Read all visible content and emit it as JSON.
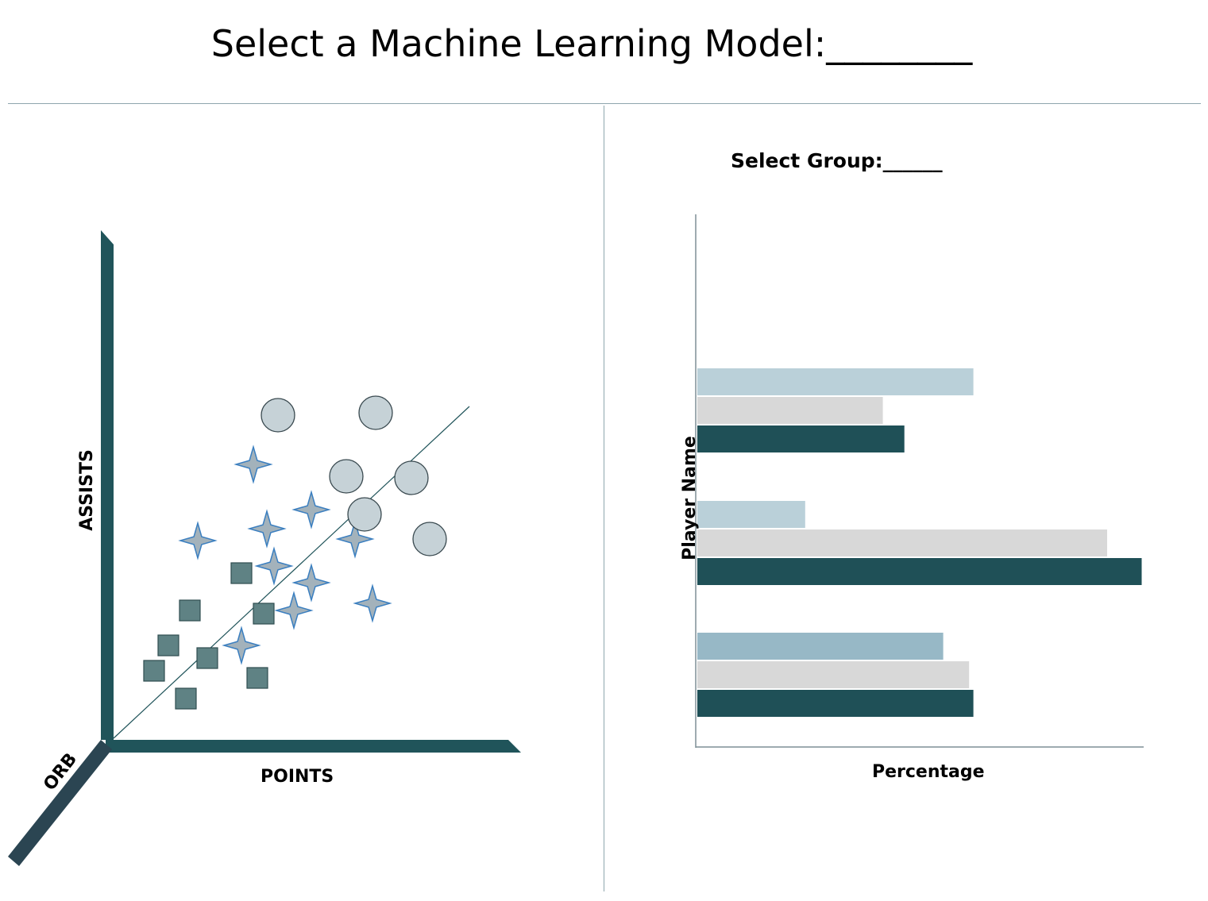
{
  "header": {
    "title": "Select a Machine Learning Model:________"
  },
  "scatter_plot": {
    "axis_labels": {
      "y": "ASSISTS",
      "x": "POINTS",
      "z": "ORB"
    },
    "colors": {
      "axis": "#20545a",
      "z_axis": "#2b4552",
      "square_fill": "#5f8284",
      "star_fill": "#a3b2bb",
      "star_stroke": "#3b7fc0",
      "circle_fill": "#c6d2d7",
      "circle_stroke": "#3a4a50",
      "trend_line": "#20545a"
    }
  },
  "bar_chart": {
    "group_label": "Select Group:______",
    "y_label": "Player Name",
    "x_label": "Percentage",
    "colors": [
      "#bad0d9",
      "#d8d8d8",
      "#1f5057"
    ],
    "group_colors_override": [
      null,
      null,
      [
        "#97b8c6",
        "#d8d8d8",
        "#1f5057"
      ]
    ],
    "chart_data": {
      "type": "bar",
      "orientation": "horizontal",
      "groups": [
        {
          "values": [
            64,
            43,
            48
          ]
        },
        {
          "values": [
            25,
            95,
            103
          ]
        },
        {
          "values": [
            57,
            63,
            64
          ]
        }
      ],
      "xlim": [
        0,
        100
      ]
    }
  }
}
